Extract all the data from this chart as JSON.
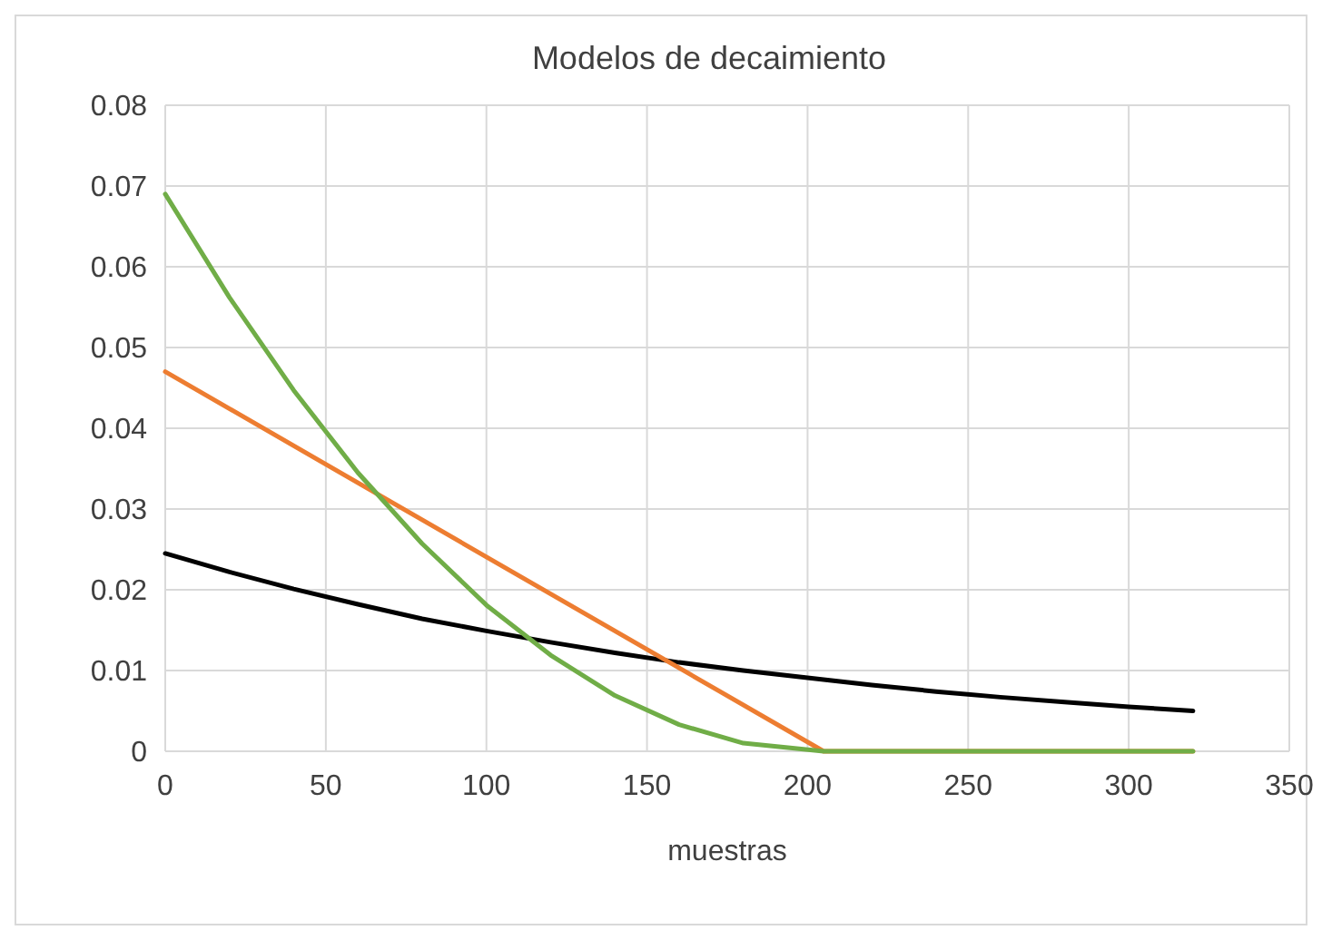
{
  "chart_data": {
    "type": "line",
    "title": "Modelos de decaimiento",
    "xlabel": "muestras",
    "xlim": [
      0,
      350
    ],
    "xticks": [
      0,
      50,
      100,
      150,
      200,
      250,
      300,
      350
    ],
    "ylim": [
      0,
      0.08
    ],
    "yticks": [
      {
        "value": 0,
        "label": "0"
      },
      {
        "value": 0.01,
        "label": "0.01"
      },
      {
        "value": 0.02,
        "label": "0.02"
      },
      {
        "value": 0.03,
        "label": "0.03"
      },
      {
        "value": 0.04,
        "label": "0.04"
      },
      {
        "value": 0.05,
        "label": "0.05"
      },
      {
        "value": 0.06,
        "label": "0.06"
      },
      {
        "value": 0.07,
        "label": "0.07"
      },
      {
        "value": 0.08,
        "label": "0.08"
      }
    ],
    "grid": true,
    "marker": "none",
    "line_style": "solid",
    "series": [
      {
        "color": "#000000",
        "x": [
          0,
          20,
          40,
          60,
          80,
          100,
          120,
          140,
          160,
          180,
          200,
          220,
          240,
          260,
          280,
          300,
          320
        ],
        "values": [
          0.0245,
          0.0222,
          0.0201,
          0.0182,
          0.0164,
          0.0149,
          0.0135,
          0.0122,
          0.011,
          0.01,
          0.0091,
          0.0082,
          0.0074,
          0.0067,
          0.0061,
          0.0055,
          0.005
        ]
      },
      {
        "color": "#ed7d31",
        "x": [
          0,
          205,
          320
        ],
        "values": [
          0.047,
          0,
          0
        ]
      },
      {
        "color": "#70ad47",
        "x": [
          0,
          20,
          40,
          60,
          80,
          100,
          120,
          140,
          160,
          180,
          205,
          320
        ],
        "values": [
          0.069,
          0.0562,
          0.0447,
          0.0345,
          0.0257,
          0.0181,
          0.0119,
          0.0069,
          0.0033,
          0.001,
          0,
          0
        ]
      }
    ]
  }
}
